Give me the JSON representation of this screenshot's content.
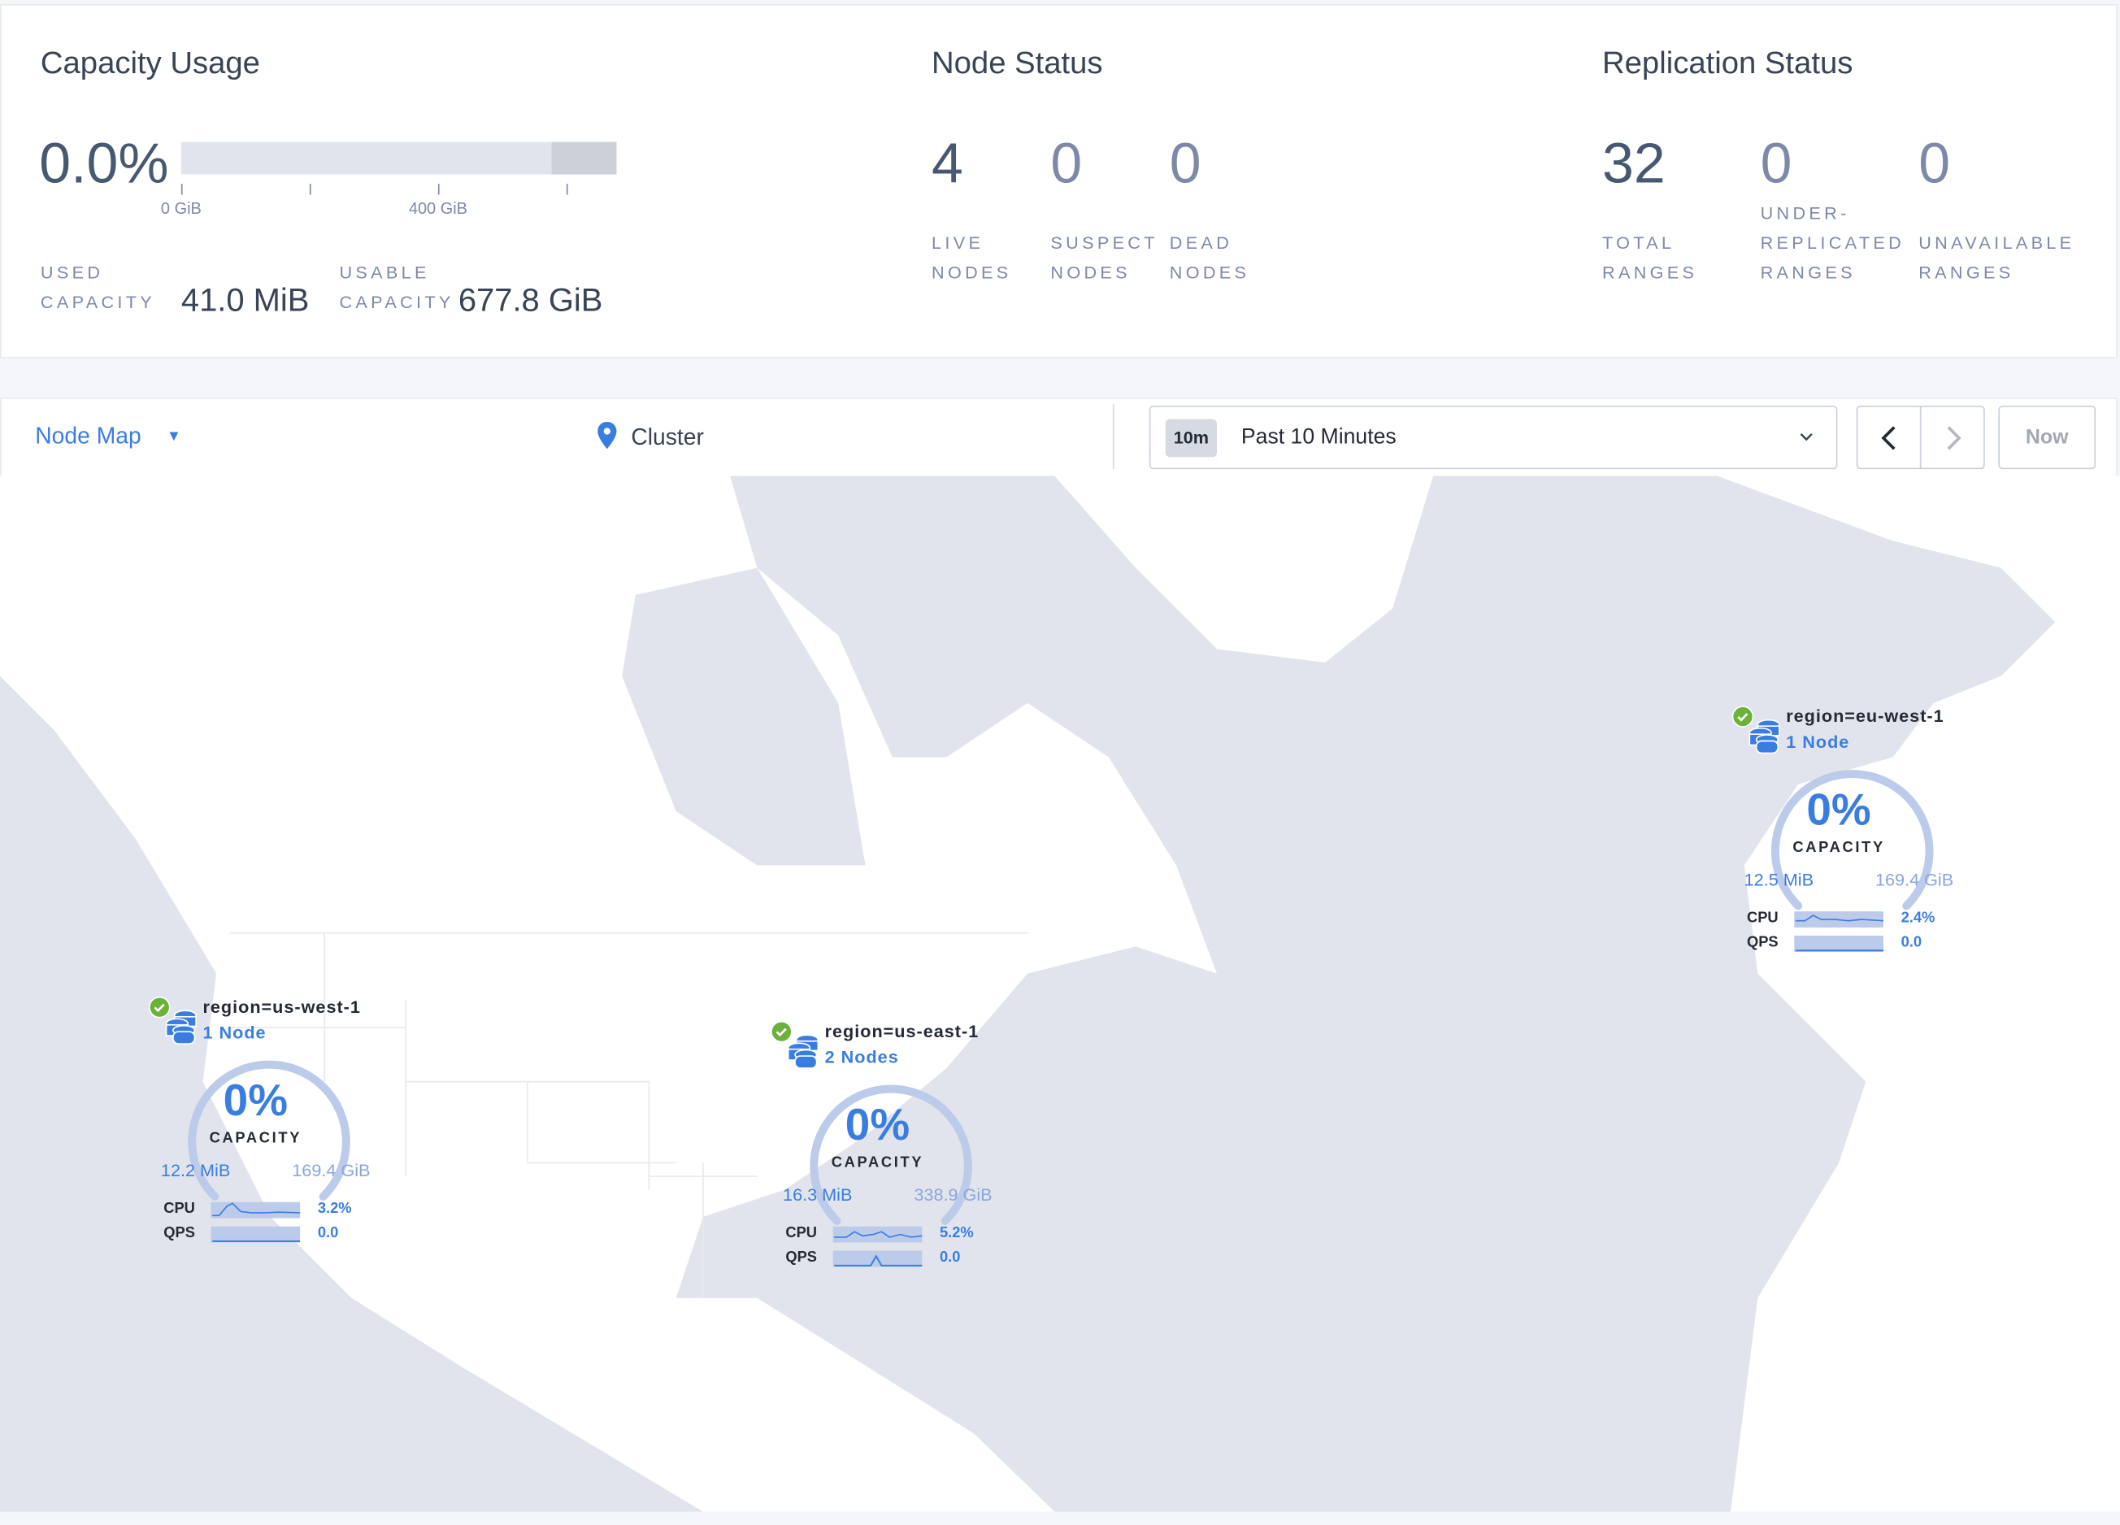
{
  "capacity": {
    "title": "Capacity Usage",
    "percent": "0.0%",
    "bar_used_fraction": 0.0001,
    "ticks": [
      "0 GiB",
      "400 GiB"
    ],
    "used_label": [
      "USED",
      "CAPACITY"
    ],
    "used_value": "41.0 MiB",
    "usable_label": [
      "USABLE",
      "CAPACITY"
    ],
    "usable_value": "677.8 GiB"
  },
  "node_status": {
    "title": "Node Status",
    "stats": [
      {
        "value": "4",
        "label": [
          "LIVE",
          "NODES"
        ]
      },
      {
        "value": "0",
        "label": [
          "SUSPECT",
          "NODES"
        ]
      },
      {
        "value": "0",
        "label": [
          "DEAD",
          "NODES"
        ]
      }
    ]
  },
  "replication": {
    "title": "Replication Status",
    "stats": [
      {
        "value": "32",
        "label": [
          "",
          "TOTAL",
          "RANGES"
        ]
      },
      {
        "value": "0",
        "label": [
          "UNDER-",
          "REPLICATED",
          "RANGES"
        ]
      },
      {
        "value": "0",
        "label": [
          "",
          "UNAVAILABLE",
          "RANGES"
        ]
      }
    ]
  },
  "toolbar": {
    "view": "Node Map",
    "breadcrumb": "Cluster",
    "time_badge": "10m",
    "time_range": "Past 10 Minutes",
    "now_label": "Now"
  },
  "regions": [
    {
      "name": "region=us-west-1",
      "nodes": "1 Node",
      "percent": "0%",
      "capacity_label": "CAPACITY",
      "used": "12.2 MiB",
      "total": "169.4 GiB",
      "cpu_label": "CPU",
      "cpu": "3.2%",
      "qps_label": "QPS",
      "qps": "0.0",
      "status": "healthy"
    },
    {
      "name": "region=us-east-1",
      "nodes": "2 Nodes",
      "percent": "0%",
      "capacity_label": "CAPACITY",
      "used": "16.3 MiB",
      "total": "338.9 GiB",
      "cpu_label": "CPU",
      "cpu": "5.2%",
      "qps_label": "QPS",
      "qps": "0.0",
      "status": "healthy"
    },
    {
      "name": "region=eu-west-1",
      "nodes": "1 Node",
      "percent": "0%",
      "capacity_label": "CAPACITY",
      "used": "12.5 MiB",
      "total": "169.4 GiB",
      "cpu_label": "CPU",
      "cpu": "2.4%",
      "qps_label": "QPS",
      "qps": "0.0",
      "status": "healthy"
    }
  ],
  "colors": {
    "accent": "#3a7de1",
    "healthy": "#6cb13a",
    "water": "#e1e4ec",
    "land": "#ffffff"
  }
}
